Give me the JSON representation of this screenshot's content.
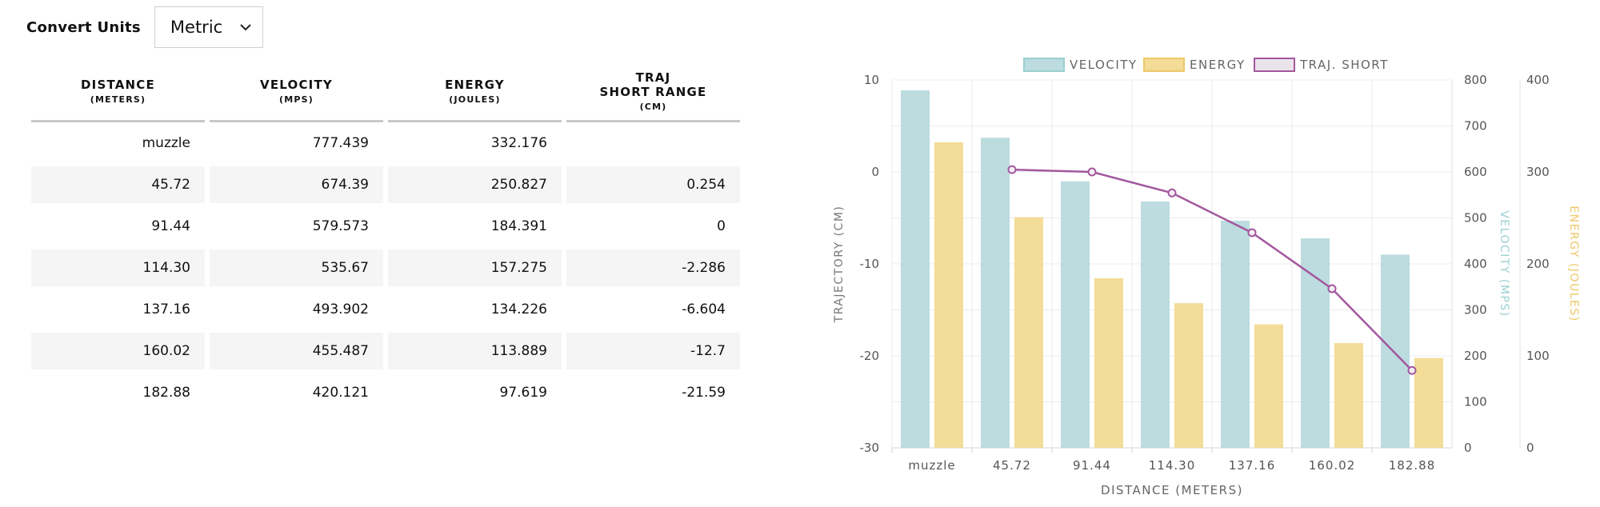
{
  "units": {
    "label": "Convert Units",
    "selected": "Metric"
  },
  "table": {
    "headers": [
      {
        "title": "DISTANCE",
        "sub": "(METERS)"
      },
      {
        "title": "VELOCITY",
        "sub": "(MPS)"
      },
      {
        "title": "ENERGY",
        "sub": "(JOULES)"
      },
      {
        "title": "TRAJ\nSHORT RANGE",
        "sub": "(CM)"
      }
    ],
    "rows": [
      [
        "muzzle",
        "777.439",
        "332.176",
        ""
      ],
      [
        "45.72",
        "674.39",
        "250.827",
        "0.254"
      ],
      [
        "91.44",
        "579.573",
        "184.391",
        "0"
      ],
      [
        "114.30",
        "535.67",
        "157.275",
        "-2.286"
      ],
      [
        "137.16",
        "493.902",
        "134.226",
        "-6.604"
      ],
      [
        "160.02",
        "455.487",
        "113.889",
        "-12.7"
      ],
      [
        "182.88",
        "420.121",
        "97.619",
        "-21.59"
      ]
    ]
  },
  "chart_data": {
    "type": "bar",
    "categories": [
      "muzzle",
      "45.72",
      "91.44",
      "114.30",
      "137.16",
      "160.02",
      "182.88"
    ],
    "xlabel": "DISTANCE (METERS)",
    "series": [
      {
        "name": "VELOCITY",
        "type": "bar",
        "axis": "VELOCITY (MPS)",
        "color": "#bcdcdf",
        "values": [
          777.439,
          674.39,
          579.573,
          535.67,
          493.902,
          455.487,
          420.121
        ]
      },
      {
        "name": "ENERGY",
        "type": "bar",
        "axis": "ENERGY (JOULES)",
        "color": "#f3dc97",
        "values": [
          332.176,
          250.827,
          184.391,
          157.275,
          134.226,
          113.889,
          97.619
        ]
      },
      {
        "name": "TRAJ. SHORT",
        "type": "line",
        "axis": "TRAJECTORY (CM)",
        "color": "#a3589e",
        "values": [
          null,
          0.254,
          0,
          -2.286,
          -6.604,
          -12.7,
          -21.59
        ]
      }
    ],
    "axes": {
      "trajectory": {
        "label": "TRAJECTORY (CM)",
        "range": [
          -30,
          10
        ],
        "ticks": [
          10,
          0,
          -10,
          -20,
          -30
        ],
        "color": "#888888"
      },
      "velocity": {
        "label": "VELOCITY (MPS)",
        "range": [
          0,
          800
        ],
        "ticks": [
          800,
          700,
          600,
          500,
          400,
          300,
          200,
          100,
          0
        ],
        "color": "#9ccfd0"
      },
      "energy": {
        "label": "ENERGY (JOULES)",
        "range": [
          0,
          400
        ],
        "ticks": [
          400,
          300,
          200,
          100,
          0
        ],
        "color": "#eec86a"
      }
    },
    "legend_position": "top",
    "grid": true
  }
}
